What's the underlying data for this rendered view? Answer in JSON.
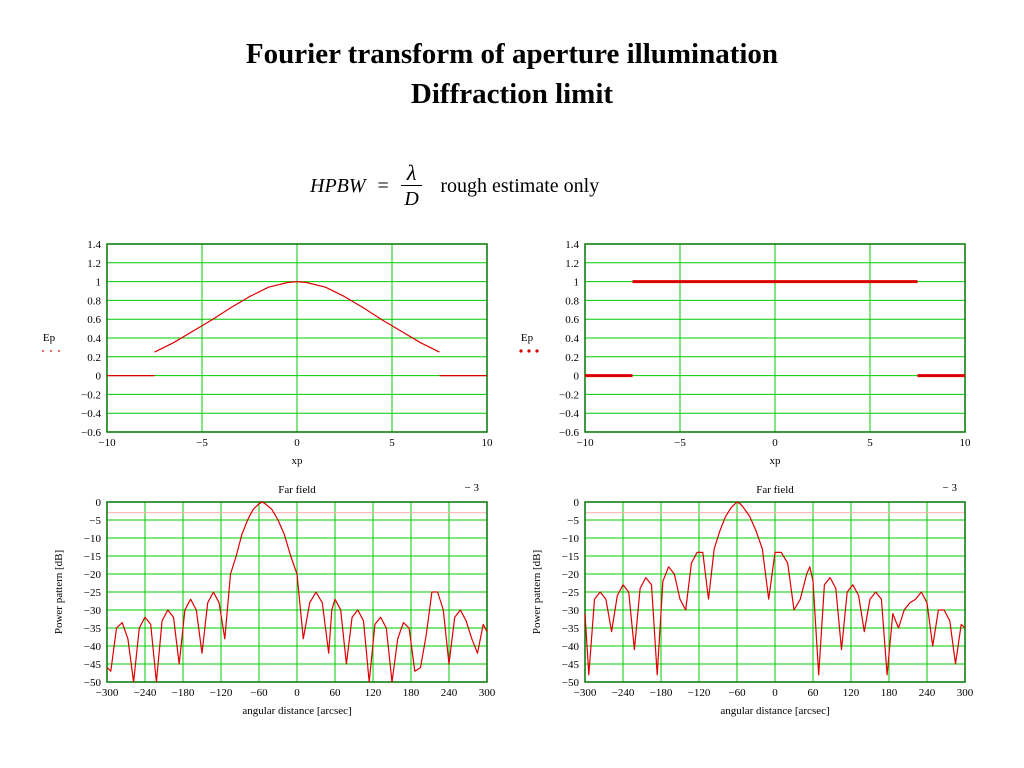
{
  "title": {
    "line1": "Fourier transform of aperture illumination",
    "line2": "Diffraction limit"
  },
  "formula": {
    "lhs": "HPBW",
    "equals": "=",
    "numerator": "λ",
    "denominator": "D",
    "note": "rough estimate only"
  },
  "colors": {
    "grid": "#00cc00",
    "axis": "#007700",
    "trace": "#dd0000",
    "ref_line": "#ffaaaa"
  },
  "chart_data": [
    {
      "type": "line",
      "panel": "top-left",
      "xlabel": "xp",
      "ylabel": "Ep",
      "xlim": [
        -10,
        10
      ],
      "ylim": [
        -0.6,
        1.4
      ],
      "xticks": [
        -10,
        -5,
        0,
        5,
        10
      ],
      "yticks": [
        -0.6,
        -0.4,
        -0.2,
        0,
        0.2,
        0.4,
        0.6,
        0.8,
        1,
        1.2,
        1.4
      ],
      "grid": true,
      "series": [
        {
          "x": [
            -10,
            -7.5
          ],
          "y": [
            0,
            0
          ]
        },
        {
          "x": [
            -7.5,
            -6.5,
            -5.5,
            -4.5,
            -3.5,
            -2.5,
            -1.5,
            -0.5,
            0,
            0.5,
            1.5,
            2.5,
            3.5,
            4.5,
            5.5,
            6.5,
            7.5
          ],
          "y": [
            0.25,
            0.35,
            0.47,
            0.59,
            0.72,
            0.84,
            0.94,
            0.99,
            1.0,
            0.99,
            0.94,
            0.84,
            0.72,
            0.59,
            0.47,
            0.35,
            0.25
          ]
        },
        {
          "x": [
            7.5,
            10
          ],
          "y": [
            0,
            0
          ]
        }
      ]
    },
    {
      "type": "line",
      "panel": "top-right",
      "xlabel": "xp",
      "ylabel": "Ep",
      "xlim": [
        -10,
        10
      ],
      "ylim": [
        -0.6,
        1.4
      ],
      "xticks": [
        -10,
        -5,
        0,
        5,
        10
      ],
      "yticks": [
        -0.6,
        -0.4,
        -0.2,
        0,
        0.2,
        0.4,
        0.6,
        0.8,
        1,
        1.2,
        1.4
      ],
      "grid": true,
      "thick": true,
      "series": [
        {
          "x": [
            -10,
            -7.5
          ],
          "y": [
            0,
            0
          ]
        },
        {
          "x": [
            -7.5,
            7.5
          ],
          "y": [
            1,
            1
          ]
        },
        {
          "x": [
            7.5,
            10
          ],
          "y": [
            0,
            0
          ]
        }
      ]
    },
    {
      "type": "line",
      "panel": "bottom-left",
      "title": "Far field",
      "annotation": "− 3",
      "xlabel": "angular distance [arcsec]",
      "ylabel": "Power pattern [dB]",
      "xlim": [
        -300,
        300
      ],
      "ylim": [
        -50,
        0
      ],
      "xticks": [
        -300,
        -240,
        -180,
        -120,
        -60,
        0,
        60,
        120,
        180,
        240,
        300
      ],
      "yticks": [
        0,
        -5,
        -10,
        -15,
        -20,
        -25,
        -30,
        -35,
        -40,
        -45,
        -50
      ],
      "grid": true,
      "reference_line": -3,
      "series": [
        {
          "x": [
            -300,
            -294,
            -285,
            -276,
            -267,
            -258,
            -249,
            -240,
            -231,
            -222,
            -213,
            -204,
            -195,
            -186,
            -177,
            -168,
            -159,
            -150,
            -141,
            -132,
            -123,
            -114,
            -105,
            -96,
            -87,
            -78,
            -69,
            -60,
            -55,
            -50,
            -40,
            -30,
            -20,
            -10,
            0,
            10,
            20,
            30,
            40,
            50,
            55,
            60,
            69,
            78,
            87,
            96,
            105,
            114,
            123,
            132,
            141,
            150,
            159,
            168,
            177,
            186,
            195,
            204,
            213,
            222,
            231,
            240,
            249,
            258,
            267,
            276,
            285,
            294,
            300
          ],
          "y": [
            -46,
            -47,
            -35,
            -33.5,
            -38,
            -50,
            -35,
            -32,
            -34,
            -50,
            -33,
            -30,
            -32,
            -45,
            -30,
            -27,
            -30,
            -42,
            -28,
            -25,
            -28,
            -38,
            -20,
            -15,
            -9,
            -5,
            -2,
            -0.5,
            0,
            -0.5,
            -2,
            -5,
            -9,
            -15,
            -20,
            -38,
            -28,
            -25,
            -28,
            -42,
            -30,
            -27,
            -30,
            -45,
            -32,
            -30,
            -33,
            -50,
            -34,
            -32,
            -35,
            -50,
            -38,
            -33.5,
            -35,
            -47,
            -46,
            -37,
            -25,
            -25,
            -30,
            -45,
            -32,
            -30,
            -33,
            -38,
            -42,
            -34,
            -36
          ]
        }
      ]
    },
    {
      "type": "line",
      "panel": "bottom-right",
      "title": "Far field",
      "annotation": "− 3",
      "xlabel": "angular distance [arcsec]",
      "ylabel": "Power pattern [dB]",
      "xlim": [
        -300,
        300
      ],
      "ylim": [
        -50,
        0
      ],
      "xticks": [
        -300,
        -240,
        -180,
        -120,
        -60,
        0,
        60,
        120,
        180,
        240,
        300
      ],
      "yticks": [
        0,
        -5,
        -10,
        -15,
        -20,
        -25,
        -30,
        -35,
        -40,
        -45,
        -50
      ],
      "grid": true,
      "reference_line": -3,
      "series": [
        {
          "x": [
            -300,
            -294,
            -285,
            -276,
            -267,
            -258,
            -249,
            -240,
            -231,
            -222,
            -213,
            -204,
            -195,
            -186,
            -177,
            -168,
            -159,
            -150,
            -141,
            -132,
            -123,
            -114,
            -105,
            -96,
            -87,
            -78,
            -69,
            -60,
            -55,
            -50,
            -40,
            -30,
            -20,
            -10,
            0,
            10,
            20,
            30,
            40,
            50,
            55,
            60,
            69,
            78,
            87,
            96,
            105,
            114,
            123,
            132,
            141,
            150,
            159,
            168,
            177,
            186,
            195,
            204,
            213,
            222,
            231,
            240,
            249,
            258,
            267,
            276,
            285,
            294,
            300
          ],
          "y": [
            -31,
            -48,
            -27,
            -25,
            -27,
            -36,
            -26,
            -23,
            -25,
            -41,
            -24,
            -21,
            -23,
            -48,
            -22,
            -18,
            -20,
            -27,
            -30,
            -17,
            -14,
            -14,
            -27,
            -13,
            -8,
            -4,
            -1.5,
            0,
            -0.5,
            -1.5,
            -4,
            -8,
            -13,
            -27,
            -14,
            -14,
            -17,
            -30,
            -27,
            -20,
            -18,
            -22,
            -48,
            -23,
            -21,
            -24,
            -41,
            -25,
            -23,
            -26,
            -36,
            -27,
            -25,
            -27,
            -48,
            -31,
            -35,
            -30,
            -28,
            -27,
            -25,
            -28,
            -40,
            -30,
            -30,
            -33,
            -45,
            -34,
            -35
          ]
        }
      ]
    }
  ]
}
